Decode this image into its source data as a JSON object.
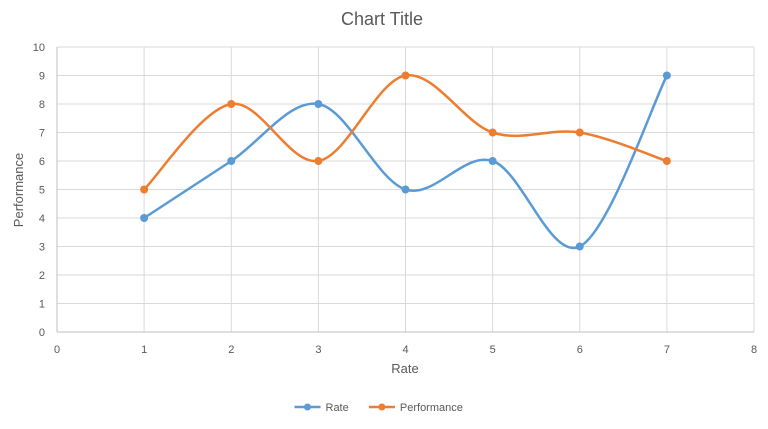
{
  "chart_data": {
    "type": "scatter",
    "title": "Chart Title",
    "xlabel": "Rate",
    "ylabel": "Performance",
    "xlim": [
      0,
      8
    ],
    "ylim": [
      0,
      10
    ],
    "x_ticks": [
      0,
      1,
      2,
      3,
      4,
      5,
      6,
      7,
      8
    ],
    "y_ticks": [
      0,
      1,
      2,
      3,
      4,
      5,
      6,
      7,
      8,
      9,
      10
    ],
    "grid": true,
    "smooth_lines": true,
    "markers": true,
    "legend_position": "bottom",
    "series": [
      {
        "name": "Rate",
        "color": "#5B9BD5",
        "x": [
          1,
          2,
          3,
          4,
          5,
          6,
          7
        ],
        "y": [
          4,
          6,
          8,
          5,
          6,
          3,
          9
        ]
      },
      {
        "name": "Performance",
        "color": "#ED7D31",
        "x": [
          1,
          2,
          3,
          4,
          5,
          6,
          7
        ],
        "y": [
          5,
          8,
          6,
          9,
          7,
          7,
          6
        ]
      }
    ]
  }
}
